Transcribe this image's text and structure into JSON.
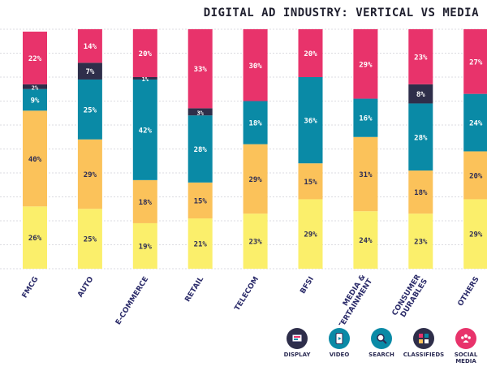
{
  "title": "DIGITAL AD INDUSTRY: VERTICAL VS MEDIA",
  "colors": {
    "display": "#fbef6b",
    "video": "#fbc25a",
    "search": "#0a8aa6",
    "classifieds": "#2e2e4a",
    "social": "#e8336b",
    "grid": "#cfcfd6",
    "label": "#2c2c6a"
  },
  "legend": [
    {
      "key": "display",
      "label": "DISPLAY",
      "icon": "display-icon"
    },
    {
      "key": "video",
      "label": "VIDEO",
      "icon": "video-icon"
    },
    {
      "key": "search",
      "label": "SEARCH",
      "icon": "search-icon"
    },
    {
      "key": "classifieds",
      "label": "CLASSIFIEDS",
      "icon": "classifieds-icon"
    },
    {
      "key": "social",
      "label": "SOCIAL\nMEDIA",
      "icon": "social-media-icon"
    }
  ],
  "chart_data": {
    "type": "bar",
    "stacked": true,
    "categories": [
      "FMCG",
      "AUTO",
      "E-COMMERCE",
      "RETAIL",
      "TELECOM",
      "BFSI",
      "MEDIA & ENTERTAINMENT",
      "CONSUMER DURABLES",
      "OTHERS"
    ],
    "category_lines": [
      [
        "FMCG"
      ],
      [
        "AUTO"
      ],
      [
        "E-COMMERCE"
      ],
      [
        "RETAIL"
      ],
      [
        "TELECOM"
      ],
      [
        "BFSI"
      ],
      [
        "MEDIA &",
        "ENTERTAINMENT"
      ],
      [
        "CONSUMER",
        "DURABLES"
      ],
      [
        "OTHERS"
      ]
    ],
    "series": [
      {
        "key": "display",
        "name": "DISPLAY",
        "values": [
          26,
          25,
          19,
          21,
          23,
          29,
          24,
          23,
          29
        ]
      },
      {
        "key": "video",
        "name": "VIDEO",
        "values": [
          40,
          29,
          18,
          15,
          29,
          15,
          31,
          18,
          20
        ]
      },
      {
        "key": "search",
        "name": "SEARCH",
        "values": [
          9,
          25,
          42,
          28,
          18,
          36,
          16,
          28,
          24
        ]
      },
      {
        "key": "classifieds",
        "name": "CLASSIFIEDS",
        "values": [
          2,
          7,
          1,
          3,
          0,
          0,
          0,
          8,
          0
        ]
      },
      {
        "key": "social",
        "name": "SOCIAL MEDIA",
        "values": [
          22,
          14,
          20,
          33,
          30,
          20,
          29,
          23,
          27
        ]
      }
    ],
    "value_suffix": "%",
    "ylim": [
      0,
      100
    ],
    "grid": true,
    "legend_position": "bottom-right"
  }
}
